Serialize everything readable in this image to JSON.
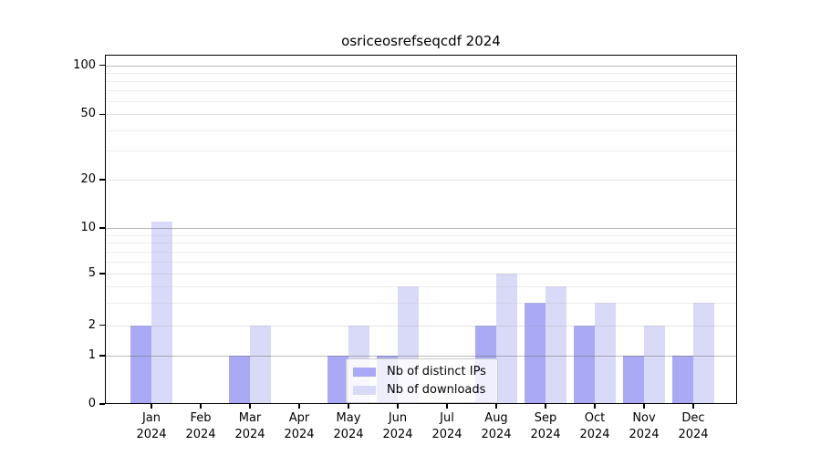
{
  "chart_data": {
    "type": "bar",
    "title": "osriceosrefseqcdf 2024",
    "xlabel": "",
    "ylabel": "",
    "year": "2024",
    "categories": [
      "Jan",
      "Feb",
      "Mar",
      "Apr",
      "May",
      "Jun",
      "Jul",
      "Aug",
      "Sep",
      "Oct",
      "Nov",
      "Dec"
    ],
    "series": [
      {
        "name": "Nb of distinct IPs",
        "color": "#a9a9f5",
        "values": [
          2,
          0,
          1,
          0,
          1,
          1,
          0,
          2,
          3,
          2,
          1,
          1
        ]
      },
      {
        "name": "Nb of downloads",
        "color": "#d9d9f8",
        "values": [
          11,
          0,
          2,
          0,
          2,
          4,
          0,
          5,
          4,
          3,
          2,
          3
        ]
      }
    ],
    "yticks": [
      0,
      1,
      2,
      5,
      10,
      20,
      50,
      100
    ],
    "minor_gridlines": [
      3,
      4,
      6,
      7,
      8,
      9,
      30,
      40,
      60,
      70,
      80,
      90
    ],
    "scale": "symlog",
    "ylim": [
      0,
      115
    ],
    "grid": true,
    "legend_position": "lower center"
  },
  "colors": {
    "background": "#ffffff",
    "axis": "#000000",
    "major_grid": "#b5b5b5",
    "grid": "#dedede",
    "minor_grid": "#ebebeb",
    "bar_ips": "#a9a9f5",
    "bar_downloads": "#d9d9f8"
  }
}
